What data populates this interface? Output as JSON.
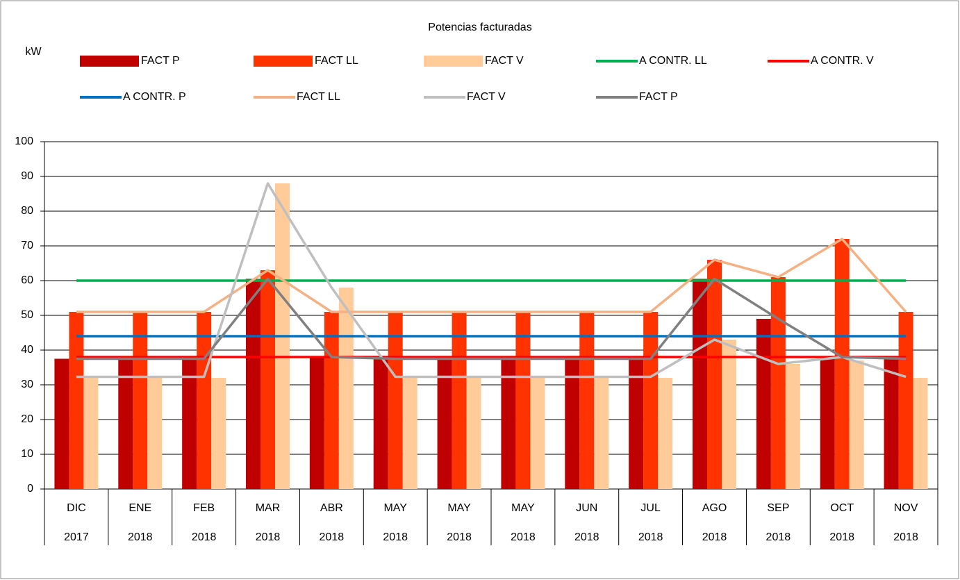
{
  "chart_data": {
    "type": "bar",
    "title": "Potencias facturadas",
    "y_label": "kW",
    "categories": [
      "DIC",
      "ENE",
      "FEB",
      "MAR",
      "ABR",
      "MAY",
      "MAY",
      "MAY",
      "JUN",
      "JUL",
      "AGO",
      "SEP",
      "OCT",
      "NOV"
    ],
    "category_years": [
      "2017",
      "2018",
      "2018",
      "2018",
      "2018",
      "2018",
      "2018",
      "2018",
      "2018",
      "2018",
      "2018",
      "2018",
      "2018",
      "2018"
    ],
    "ylim": [
      0,
      100
    ],
    "yticks": [
      0,
      10,
      20,
      30,
      40,
      50,
      60,
      70,
      80,
      90,
      100
    ],
    "grid": true,
    "series": [
      {
        "name": "FACT P",
        "type": "bar",
        "color": "#c00000",
        "values": [
          37.5,
          38,
          38,
          60.5,
          38,
          38,
          38,
          38,
          38,
          38,
          60.5,
          49,
          38,
          38
        ]
      },
      {
        "name": "FACT LL",
        "type": "bar",
        "color": "#ff3300",
        "values": [
          51,
          51,
          51,
          63,
          51,
          51,
          51,
          51,
          51,
          51,
          66,
          61,
          72,
          51
        ]
      },
      {
        "name": "FACT V",
        "type": "bar",
        "color": "#ffcc99",
        "values": [
          32,
          32,
          32,
          88,
          58,
          32,
          32,
          32,
          32,
          32,
          43,
          36,
          37,
          32
        ]
      },
      {
        "name": "A CONTR. LL",
        "type": "line",
        "color": "#00b050",
        "values": [
          60,
          60,
          60,
          60,
          60,
          60,
          60,
          60,
          60,
          60,
          60,
          60,
          60,
          60
        ]
      },
      {
        "name": "A CONTR. V",
        "type": "line",
        "color": "#ff0000",
        "values": [
          38,
          38,
          38,
          38,
          38,
          38,
          38,
          38,
          38,
          38,
          38,
          38,
          38,
          38
        ]
      },
      {
        "name": "A CONTR. P",
        "type": "line",
        "color": "#0070c0",
        "values": [
          44,
          44,
          44,
          44,
          44,
          44,
          44,
          44,
          44,
          44,
          44,
          44,
          44,
          44
        ]
      },
      {
        "name": "FACT LL",
        "type": "line",
        "color": "#f4b183",
        "values": [
          51,
          51,
          51,
          63,
          51,
          51,
          51,
          51,
          51,
          51,
          66,
          61,
          72,
          51
        ]
      },
      {
        "name": "FACT V",
        "type": "line",
        "color": "#bfbfbf",
        "values": [
          32.3,
          32.3,
          32.3,
          88,
          58,
          32.3,
          32.3,
          32.3,
          32.3,
          32.3,
          43,
          36,
          38,
          32.3
        ]
      },
      {
        "name": "FACT P",
        "type": "line",
        "color": "#808080",
        "values": [
          37.5,
          37.5,
          37.5,
          60.5,
          38,
          37.5,
          37.5,
          37.5,
          37.5,
          37.5,
          60.5,
          49,
          38,
          37.5
        ]
      }
    ]
  }
}
